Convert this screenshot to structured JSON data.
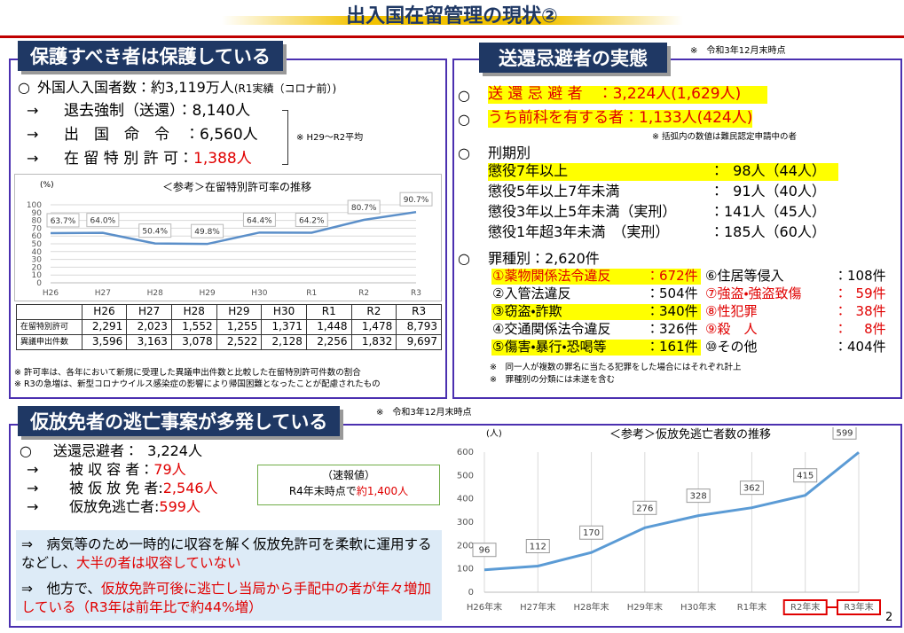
{
  "title": "出入国在留管理の現状②",
  "page_number": "2",
  "left_panel": {
    "heading": "保護すべき者は保護している",
    "summary": "外国人入国者数：約3,119万人",
    "summary_note": "(R1実績（コロナ前）)",
    "items": [
      {
        "label": "退去強制（送還）：8,140人"
      },
      {
        "label": "出　国　命　令　：6,560人"
      },
      {
        "label": "在 留 特 別 許 可：",
        "value": "1,388人"
      }
    ],
    "items_note": "※ H29～R2平均",
    "table": {
      "header": [
        "H26",
        "H27",
        "H28",
        "H29",
        "H30",
        "R1",
        "R2",
        "R3"
      ],
      "rows": [
        [
          "在留特別許可",
          "2,291",
          "2,023",
          "1,552",
          "1,255",
          "1,371",
          "1,448",
          "1,478",
          "8,793"
        ],
        [
          "異議申出件数",
          "3,596",
          "3,163",
          "3,078",
          "2,522",
          "2,128",
          "2,256",
          "1,832",
          "9,697"
        ]
      ]
    },
    "notes": [
      "※ 許可率は、各年において新規に受理した異議申出件数と比較した在留特別許可件数の割合",
      "※ R3の急増は、新型コロナウイルス感染症の影響により帰国困難となったことが配慮されたもの"
    ]
  },
  "right_panel": {
    "heading": "送還忌避者の実態",
    "as_of": "※　令和3年12月末時点",
    "items": [
      "送 還 忌 避 者　：3,224人(1,629人)",
      "うち前科を有する者：1,133人(424人)"
    ],
    "items_note": "※ 括弧内の数値は難民認定申請中の者",
    "sentence_header": "刑期別",
    "sentences": [
      {
        "label": "懲役7年以上",
        "value": "：  98人（44人）"
      },
      {
        "label": "懲役5年以上7年未満",
        "value": "：  91人（40人）"
      },
      {
        "label": "懲役3年以上5年未満（実刑）",
        "value": "：141人（45人）"
      },
      {
        "label": "懲役1年超3年未満　（実刑）",
        "value": "：185人（60人）"
      }
    ],
    "crime_header": "罪種別：2,620件",
    "crimes": [
      {
        "label": "①薬物関係法令違反",
        "value": "：672件"
      },
      {
        "label": "②入管法違反",
        "value": "：504件"
      },
      {
        "label": "③窃盗・詐欺",
        "value": "：340件"
      },
      {
        "label": "④交通関係法令違反",
        "value": "：326件"
      },
      {
        "label": "⑤傷害・暴行・恐喝等",
        "value": "：161件"
      },
      {
        "label": "⑥住居等侵入",
        "value": "：108件"
      },
      {
        "label": "⑦強盗・強盗致傷",
        "value": "：  59件"
      },
      {
        "label": "⑧性犯罪",
        "value": "：  38件"
      },
      {
        "label": "⑨殺　人",
        "value": "：    8件"
      },
      {
        "label": "⑩その他",
        "value": "：404件"
      }
    ],
    "notes": [
      "※　同一人が複数の罪名に当たる犯罪をした場合にはそれぞれ計上",
      "※　罪種別の分類には未遂を含む"
    ]
  },
  "bottom_panel": {
    "heading": "仮放免者の逃亡事案が多発している",
    "as_of": "※　令和3年12月末時点",
    "summary": "送還忌避者：  3,224人",
    "items": [
      {
        "label": "被 収 容 者：",
        "value": "79人"
      },
      {
        "label": "被 仮 放 免 者:",
        "value": "2,546人"
      },
      {
        "label": "仮放免逃亡者:",
        "value": "599人"
      }
    ],
    "callout": {
      "line1": "（速報値）",
      "line2": "R4年末時点で",
      "value": "約1,400人"
    },
    "points": [
      {
        "text": "⇒　病気等のため一時的に収容を解く仮放免許可を柔軟に運用するなどし、",
        "emphasis": "大半の者は収容していない"
      },
      {
        "text": "⇒　他方で、",
        "emphasis": "仮放免許可後に逃亡し当局から手配中の者が年々増加している（R3年は前年比で約44%増）"
      }
    ]
  },
  "chart_data": [
    {
      "type": "line",
      "title": "＜参考＞在留特別許可率の推移",
      "y_label": "(%)",
      "categories": [
        "H26",
        "H27",
        "H28",
        "H29",
        "H30",
        "R1",
        "R2",
        "R3"
      ],
      "values": [
        63.7,
        64.0,
        50.4,
        49.8,
        64.4,
        64.2,
        80.7,
        90.7
      ],
      "value_labels": [
        "63.7%",
        "64.0%",
        "50.4%",
        "49.8%",
        "64.4%",
        "64.2%",
        "80.7%",
        "90.7%"
      ],
      "color": "#5b8fc9",
      "ylim": [
        0,
        100
      ],
      "yticks": [
        0,
        10,
        20,
        30,
        40,
        50,
        60,
        70,
        80,
        90,
        100
      ],
      "grid": "y"
    },
    {
      "type": "line",
      "title": "＜参考＞仮放免逃亡者数の推移",
      "y_label": "(人)",
      "categories": [
        "H26年末",
        "H27年末",
        "H28年末",
        "H29年末",
        "H30年末",
        "R1年末",
        "R2年末",
        "R3年末"
      ],
      "values": [
        96,
        112,
        170,
        276,
        328,
        362,
        415,
        599
      ],
      "color": "#5b9bd5",
      "ylim": [
        0,
        600
      ],
      "yticks": [
        0,
        100,
        200,
        300,
        400,
        500,
        600
      ],
      "grid": "x"
    }
  ]
}
